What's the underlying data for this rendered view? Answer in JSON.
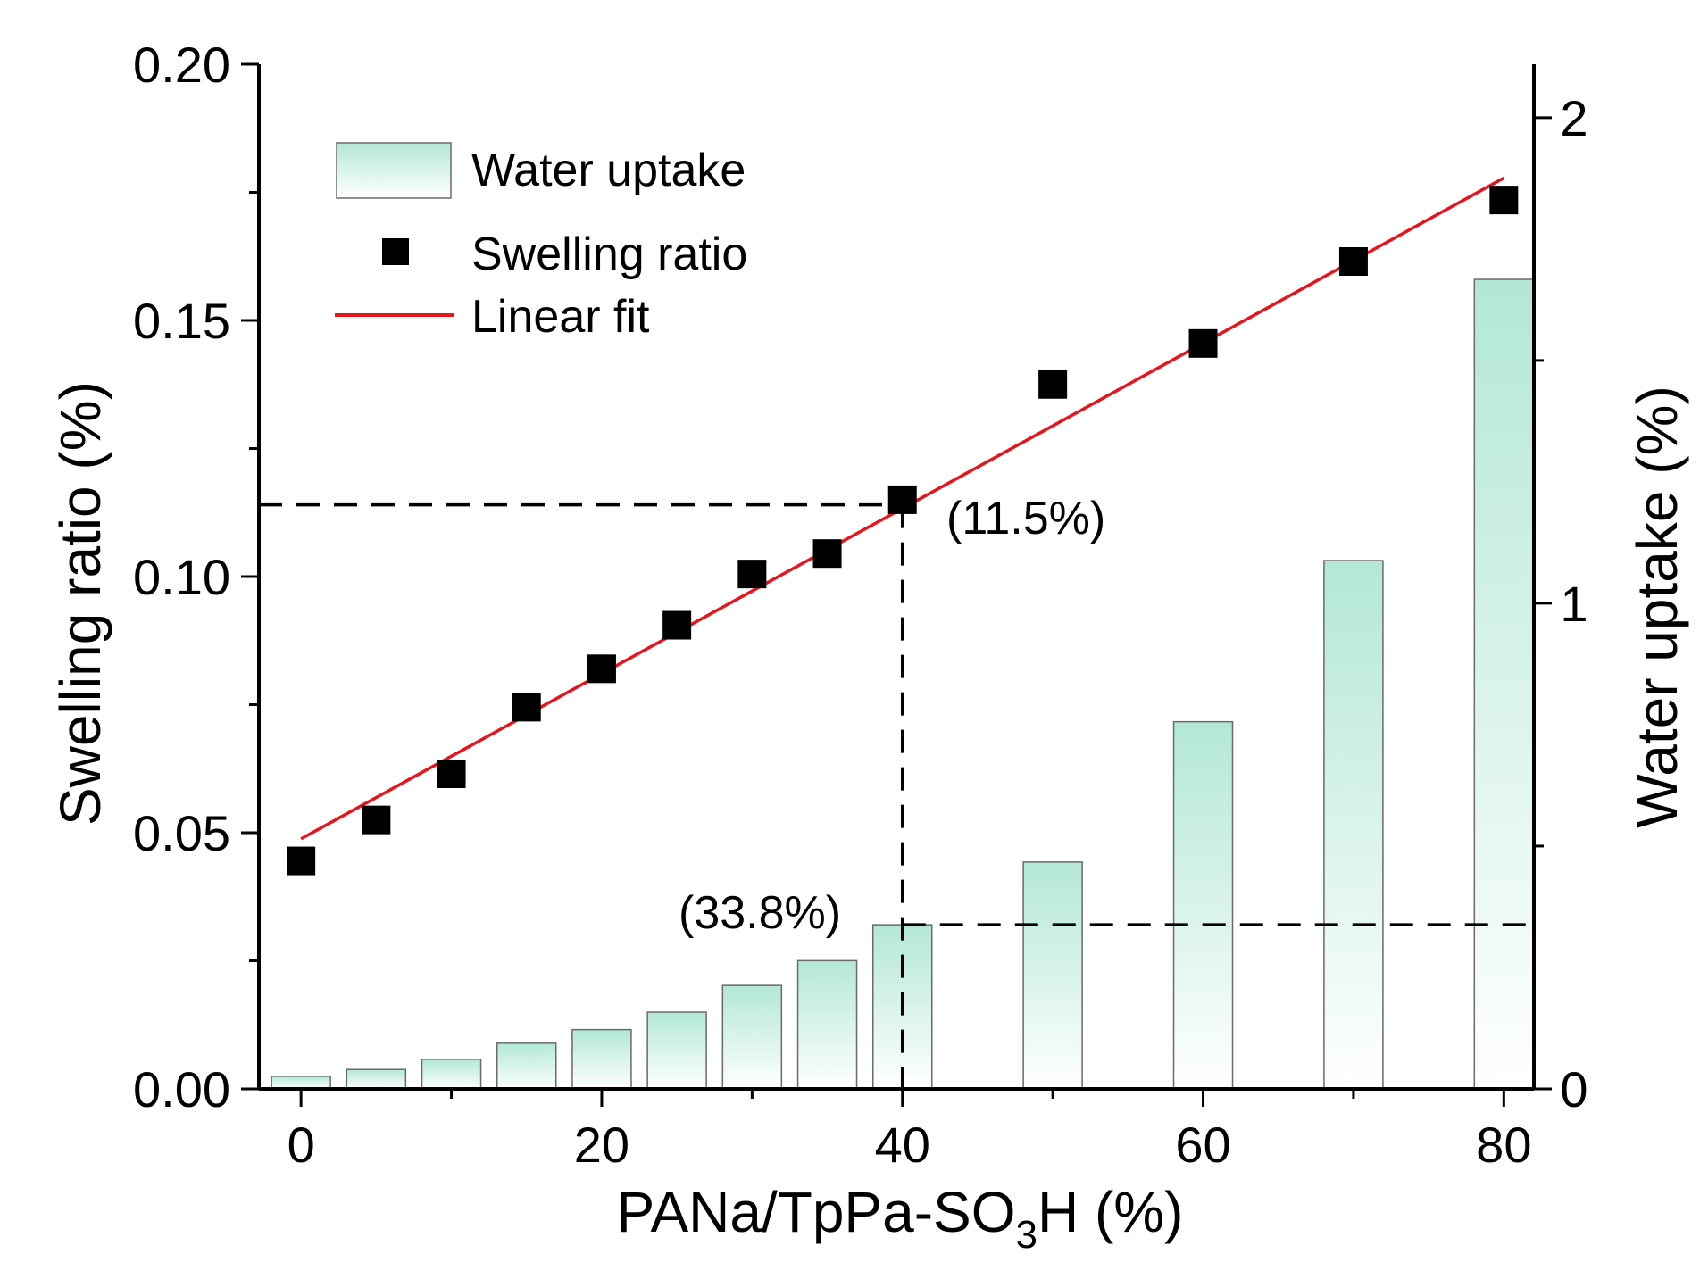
{
  "chart_data": {
    "type": "bar+scatter+line",
    "x_axis": {
      "label_main": "PANa/TpPa-SO",
      "label_sub": "3",
      "label_tail": "H (%)",
      "ticks": [
        0,
        20,
        40,
        60,
        80
      ],
      "tick_labels": [
        "0",
        "20",
        "40",
        "60",
        "80"
      ],
      "range": [
        -2.8,
        82
      ]
    },
    "y_left": {
      "label": "Swelling ratio (%)",
      "ticks": [
        0.0,
        0.05,
        0.1,
        0.15,
        0.2
      ],
      "tick_labels": [
        "0.00",
        "0.05",
        "0.10",
        "0.15",
        "0.20"
      ],
      "range": [
        0,
        0.2
      ]
    },
    "y_right": {
      "label": "Water uptake (%)",
      "ticks": [
        0,
        1,
        2
      ],
      "tick_labels": [
        "0",
        "1",
        "2"
      ],
      "range": [
        0,
        2.11
      ]
    },
    "series": [
      {
        "name": "Water uptake",
        "type": "bar",
        "axis": "right",
        "x": [
          0,
          5,
          10,
          15,
          20,
          25,
          30,
          35,
          40,
          50,
          60,
          70,
          80
        ],
        "values": [
          0.026,
          0.04,
          0.061,
          0.094,
          0.122,
          0.158,
          0.213,
          0.264,
          0.338,
          0.467,
          0.756,
          1.088,
          1.667
        ]
      },
      {
        "name": "Swelling ratio",
        "type": "scatter",
        "axis": "left",
        "x": [
          0,
          5,
          10,
          15,
          20,
          25,
          30,
          35,
          40,
          50,
          60,
          70,
          80
        ],
        "values": [
          0.0445,
          0.0525,
          0.0615,
          0.0745,
          0.082,
          0.0905,
          0.1005,
          0.1045,
          0.115,
          0.1375,
          0.1455,
          0.1615,
          0.1735
        ]
      },
      {
        "name": "Linear fit",
        "type": "line",
        "axis": "left",
        "x": [
          0,
          80
        ],
        "values": [
          0.0488,
          0.1778
        ]
      }
    ],
    "annotations": {
      "swelling_label": "(11.5%)",
      "uptake_label": "(33.8%)",
      "guide_x": 40,
      "guide_swelling": 0.114,
      "guide_uptake": 0.338
    },
    "legend_position": "top-left",
    "colors": {
      "bar_top": "#b3e8d4",
      "bar_bottom": "#ffffff",
      "bar_stroke": "#6a6a6a",
      "marker": "#000000",
      "fit_line": "#e8141b",
      "guide": "#000000"
    }
  }
}
